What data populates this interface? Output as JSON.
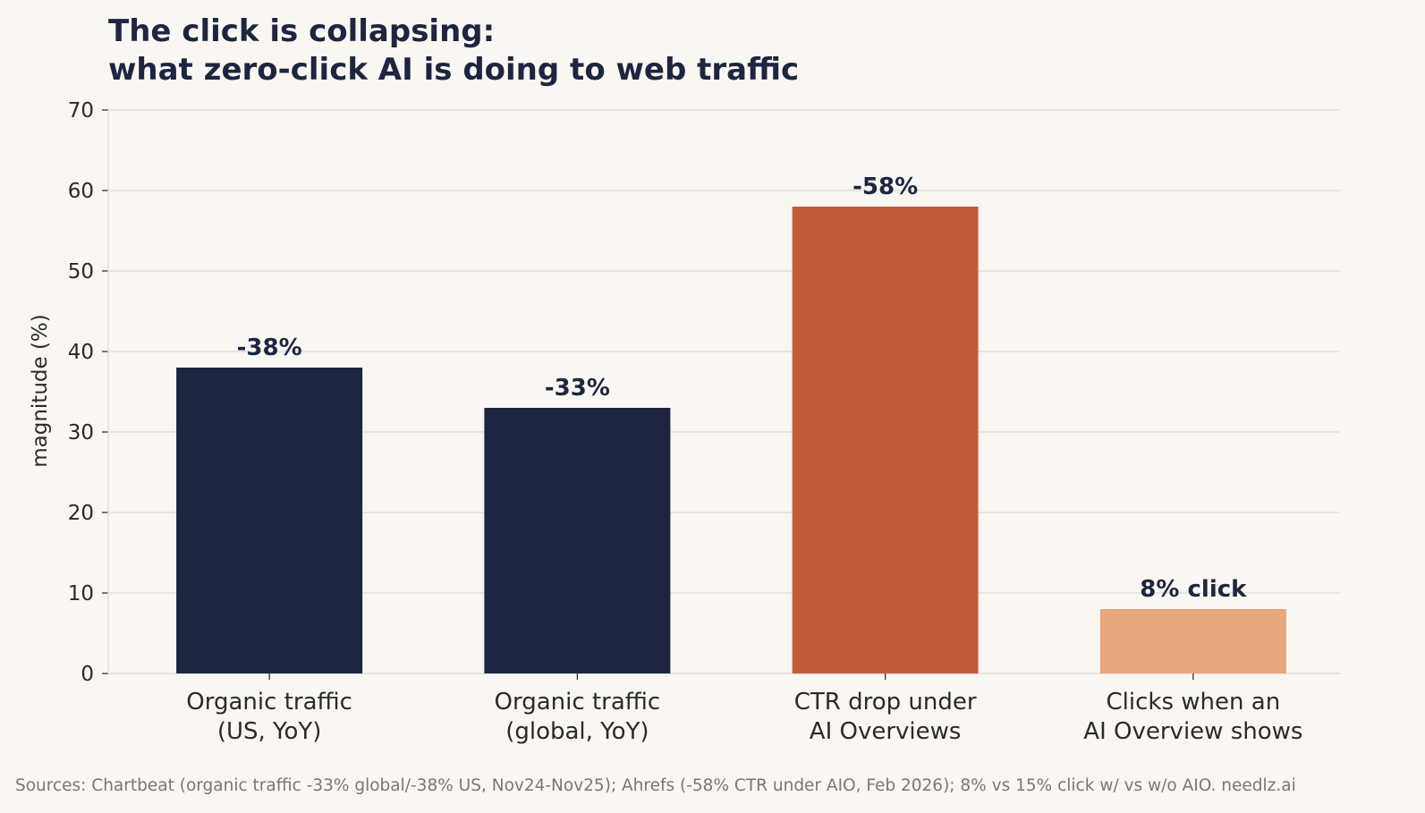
{
  "chart_data": {
    "type": "bar",
    "title_lines": [
      "The click is collapsing:",
      "what zero-click AI is doing to web traffic"
    ],
    "ylabel": "magnitude (%)",
    "xlabel": "",
    "ylim": [
      0,
      70
    ],
    "yticks": [
      0,
      10,
      20,
      30,
      40,
      50,
      60,
      70
    ],
    "grid": true,
    "categories": [
      [
        "Organic traffic",
        "(US, YoY)"
      ],
      [
        "Organic traffic",
        "(global, YoY)"
      ],
      [
        "CTR drop under",
        "AI Overviews"
      ],
      [
        "Clicks when an",
        "AI Overview shows"
      ]
    ],
    "values": [
      38,
      33,
      58,
      8
    ],
    "data_labels": [
      "-38%",
      "-33%",
      "-58%",
      "8% click"
    ],
    "colors": [
      "#1d2540",
      "#1d2540",
      "#c55b3b",
      "#e8a77c"
    ]
  },
  "footer": {
    "sources": "Sources: Chartbeat (organic traffic -33% global/-38% US, Nov24-Nov25); Ahrefs (-58% CTR under AIO, Feb 2026); 8% vs 15% click w/ vs w/o AIO.   needlz.ai"
  },
  "style": {
    "background": "#faf7f2",
    "text_color": "#1d2540",
    "axis_text_color": "#2a2a2a",
    "grid_color": "#dedad3",
    "footer_color": "#777777"
  }
}
